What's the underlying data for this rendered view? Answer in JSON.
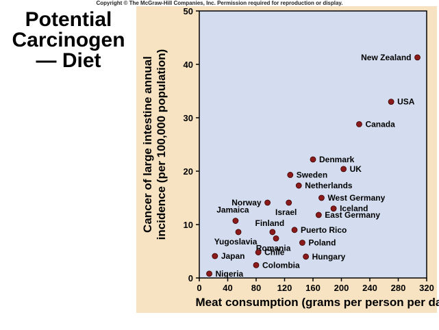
{
  "header": {
    "copyright": "Copyright © The McGraw-Hill Companies, Inc. Permission required for reproduction or display."
  },
  "slide": {
    "title_lines": [
      "Potential",
      "Carcinogen",
      "— Diet"
    ]
  },
  "colors": {
    "figure_bg": "#f7e3c2",
    "plot_bg": "#d3ddef",
    "point": "#8b1a1a"
  },
  "chart_data": {
    "type": "scatter",
    "title": "",
    "xlabel": "Meat consumption (grams per person per day)",
    "ylabel_lines": [
      "Cancer of large intestine annual",
      "incidence (per 100,000 population)"
    ],
    "xlim": [
      0,
      320
    ],
    "ylim": [
      0,
      50
    ],
    "xticks": [
      0,
      40,
      80,
      120,
      160,
      200,
      240,
      280,
      320
    ],
    "yticks": [
      0,
      10,
      20,
      30,
      40,
      50
    ],
    "points": [
      {
        "label": "New Zealand",
        "x": 307,
        "y": 41.3,
        "pos": "left"
      },
      {
        "label": "USA",
        "x": 270,
        "y": 33.0,
        "pos": "right"
      },
      {
        "label": "Canada",
        "x": 225,
        "y": 28.8,
        "pos": "right"
      },
      {
        "label": "Denmark",
        "x": 160,
        "y": 22.2,
        "pos": "right"
      },
      {
        "label": "UK",
        "x": 203,
        "y": 20.4,
        "pos": "right"
      },
      {
        "label": "Sweden",
        "x": 128,
        "y": 19.3,
        "pos": "right"
      },
      {
        "label": "Netherlands",
        "x": 140,
        "y": 17.3,
        "pos": "right"
      },
      {
        "label": "West Germany",
        "x": 172,
        "y": 15.0,
        "pos": "right"
      },
      {
        "label": "Norway",
        "x": 96,
        "y": 14.1,
        "pos": "left"
      },
      {
        "label": "Israel",
        "x": 126,
        "y": 14.1,
        "pos": "below"
      },
      {
        "label": "Iceland",
        "x": 189,
        "y": 13.0,
        "pos": "right"
      },
      {
        "label": "East Germany",
        "x": 168,
        "y": 11.8,
        "pos": "right"
      },
      {
        "label": "Jamaica",
        "x": 51,
        "y": 10.7,
        "pos": "above-left"
      },
      {
        "label": "Finland",
        "x": 103,
        "y": 8.6,
        "pos": "above"
      },
      {
        "label": "Puerto Rico",
        "x": 134,
        "y": 9.0,
        "pos": "right"
      },
      {
        "label": "Yugoslavia",
        "x": 55,
        "y": 8.6,
        "pos": "below"
      },
      {
        "label": "Romania",
        "x": 108,
        "y": 7.4,
        "pos": "below"
      },
      {
        "label": "Poland",
        "x": 145,
        "y": 6.6,
        "pos": "right"
      },
      {
        "label": "Chile",
        "x": 83,
        "y": 4.8,
        "pos": "right"
      },
      {
        "label": "Japan",
        "x": 22,
        "y": 4.1,
        "pos": "right"
      },
      {
        "label": "Hungary",
        "x": 150,
        "y": 4.0,
        "pos": "right"
      },
      {
        "label": "Colombia",
        "x": 80,
        "y": 2.4,
        "pos": "right"
      },
      {
        "label": "Nigeria",
        "x": 14,
        "y": 0.8,
        "pos": "right"
      }
    ]
  }
}
